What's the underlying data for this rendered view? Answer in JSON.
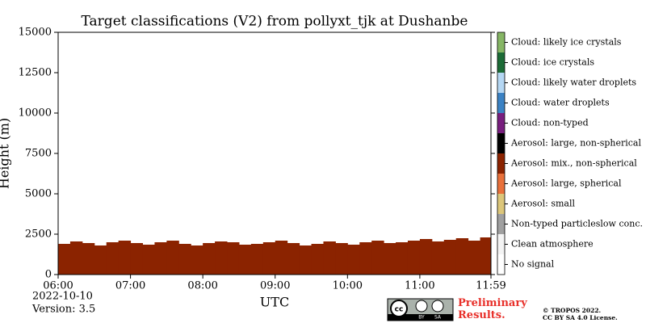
{
  "chart_data": {
    "type": "classification",
    "title": "Target classifications (V2) from pollyxt_tjk at Dushanbe",
    "x_label": "UTC",
    "y_label": "Height (m)",
    "xlim": [
      360,
      719
    ],
    "xticks": [
      {
        "value": 360,
        "label": "06:00"
      },
      {
        "value": 420,
        "label": "07:00"
      },
      {
        "value": 480,
        "label": "08:00"
      },
      {
        "value": 540,
        "label": "09:00"
      },
      {
        "value": 600,
        "label": "10:00"
      },
      {
        "value": 660,
        "label": "11:00"
      },
      {
        "value": 719,
        "label": "11:59"
      }
    ],
    "ylim": [
      0,
      15000
    ],
    "yticks": [
      0,
      2500,
      5000,
      7500,
      10000,
      12500,
      15000
    ],
    "x": [
      360,
      370,
      380,
      390,
      400,
      410,
      420,
      430,
      440,
      450,
      460,
      470,
      480,
      490,
      500,
      510,
      520,
      530,
      540,
      550,
      560,
      570,
      580,
      590,
      600,
      610,
      620,
      630,
      640,
      650,
      660,
      670,
      680,
      690,
      700,
      710
    ],
    "series": [
      {
        "name": "Aerosol: mix., non-spherical",
        "color": "#8b2300",
        "values": [
          1900,
          2050,
          1950,
          1800,
          2000,
          2100,
          1950,
          1850,
          2000,
          2100,
          1900,
          1800,
          1950,
          2050,
          2000,
          1850,
          1900,
          2000,
          2100,
          1950,
          1800,
          1900,
          2050,
          1950,
          1850,
          2000,
          2100,
          1950,
          2000,
          2100,
          2200,
          2050,
          2150,
          2250,
          2100,
          2300
        ]
      }
    ],
    "classes": [
      {
        "name": "No signal",
        "color": "#ffffff"
      },
      {
        "name": "Clean atmosphere",
        "color": "#f4f4f4"
      },
      {
        "name": "Non-typed particleslow conc.",
        "color": "#a0a0a0"
      },
      {
        "name": "Aerosol: small",
        "color": "#dcc67a"
      },
      {
        "name": "Aerosol: large, spherical",
        "color": "#e8703a"
      },
      {
        "name": "Aerosol: mix., non-spherical",
        "color": "#8b2300"
      },
      {
        "name": "Aerosol: large, non-spherical",
        "color": "#000000"
      },
      {
        "name": "Cloud: non-typed",
        "color": "#781e7e"
      },
      {
        "name": "Cloud: water droplets",
        "color": "#3b82c4"
      },
      {
        "name": "Cloud: likely water droplets",
        "color": "#b5d7f3"
      },
      {
        "name": "Cloud: ice crystals",
        "color": "#1c6b36"
      },
      {
        "name": "Cloud: likely ice crystals",
        "color": "#86b665"
      }
    ],
    "date": "2022-10-10",
    "version": "Version: 3.5",
    "notice": "Preliminary Results.",
    "copyright": "© TROPOS 2022.",
    "license": "CC BY SA 4.0 License.",
    "logo": {
      "cc": "cc",
      "by": "BY",
      "sa": "SA"
    }
  }
}
